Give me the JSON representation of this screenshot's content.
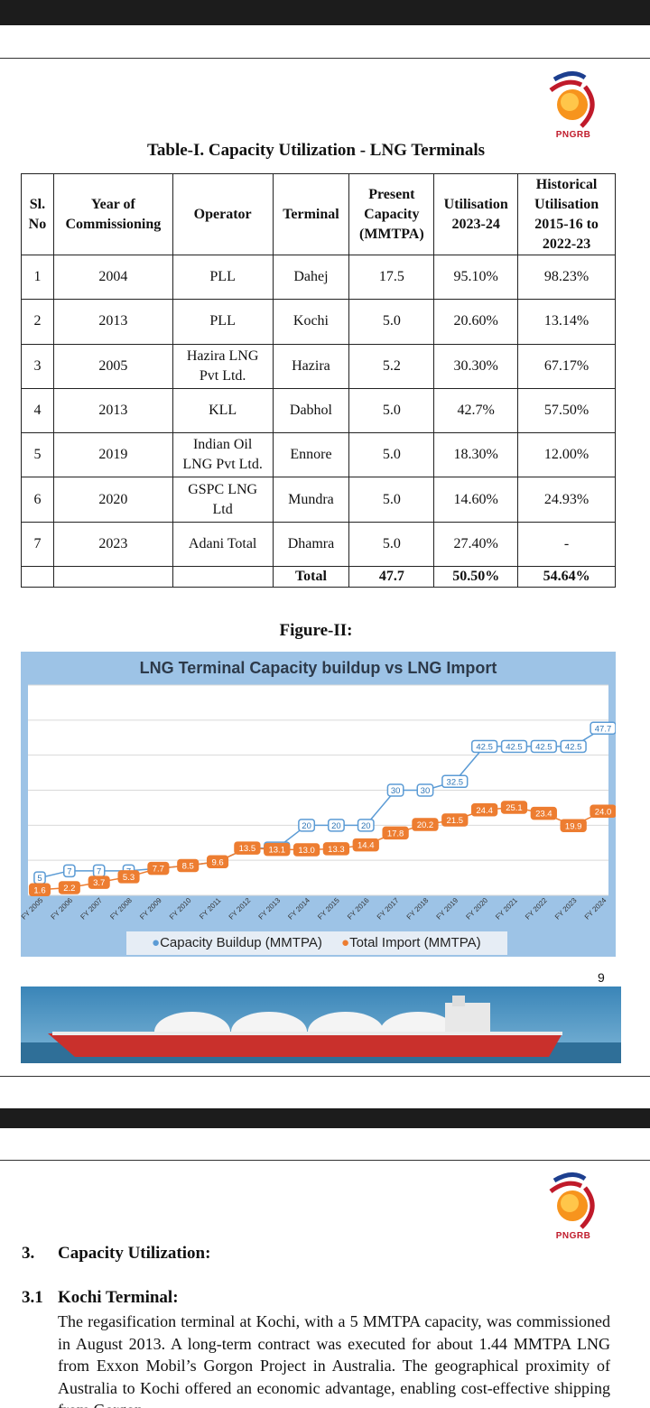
{
  "brand": {
    "logo_text": "PNGRB"
  },
  "table": {
    "title": "Table-I. Capacity Utilization - LNG Terminals",
    "headers": {
      "sl": [
        "Sl.",
        "No"
      ],
      "year": [
        "Year of",
        "Commissioning"
      ],
      "operator": "Operator",
      "terminal": "Terminal",
      "capacity": [
        "Present",
        "Capacity",
        "(MMTPA)"
      ],
      "util": [
        "Utilisation",
        "2023-24"
      ],
      "hist": [
        "Historical",
        "Utilisation",
        "2015-16 to",
        "2022-23"
      ]
    },
    "rows": [
      {
        "sl": "1",
        "year": "2004",
        "operator": [
          "PLL"
        ],
        "terminal": "Dahej",
        "capacity": "17.5",
        "util": "95.10%",
        "hist": "98.23%"
      },
      {
        "sl": "2",
        "year": "2013",
        "operator": [
          "PLL"
        ],
        "terminal": "Kochi",
        "capacity": "5.0",
        "util": "20.60%",
        "hist": "13.14%"
      },
      {
        "sl": "3",
        "year": "2005",
        "operator": [
          "Hazira LNG",
          "Pvt Ltd."
        ],
        "terminal": "Hazira",
        "capacity": "5.2",
        "util": "30.30%",
        "hist": "67.17%"
      },
      {
        "sl": "4",
        "year": "2013",
        "operator": [
          "KLL"
        ],
        "terminal": "Dabhol",
        "capacity": "5.0",
        "util": "42.7%",
        "hist": "57.50%"
      },
      {
        "sl": "5",
        "year": "2019",
        "operator": [
          "Indian Oil",
          "LNG Pvt Ltd."
        ],
        "terminal": "Ennore",
        "capacity": "5.0",
        "util": "18.30%",
        "hist": "12.00%"
      },
      {
        "sl": "6",
        "year": "2020",
        "operator": [
          "GSPC LNG",
          "Ltd"
        ],
        "terminal": "Mundra",
        "capacity": "5.0",
        "util": "14.60%",
        "hist": "24.93%"
      },
      {
        "sl": "7",
        "year": "2023",
        "operator": [
          "Adani Total"
        ],
        "terminal": "Dhamra",
        "capacity": "5.0",
        "util": "27.40%",
        "hist": "-"
      }
    ],
    "total": {
      "label": "Total",
      "capacity": "47.7",
      "util": "50.50%",
      "hist": "54.64%"
    }
  },
  "figure_title": "Figure-II:",
  "chart_data": {
    "type": "line",
    "title": "LNG Terminal Capacity buildup vs LNG Import",
    "categories": [
      "FY 2005",
      "FY 2006",
      "FY 2007",
      "FY 2008",
      "FY 2009",
      "FY 2010",
      "FY 2011",
      "FY 2012",
      "FY 2013",
      "FY 2014",
      "FY 2015",
      "FY 2016",
      "FY 2017",
      "FY 2018",
      "FY 2019",
      "FY 2020",
      "FY 2021",
      "FY 2022",
      "FY 2023",
      "FY 2024"
    ],
    "series": [
      {
        "name": "Capacity Buildup (MMTPA)",
        "color": "#5b9bd5",
        "values": [
          5,
          7,
          7,
          7,
          7.7,
          8.5,
          9.6,
          13.5,
          13.5,
          20,
          20,
          20,
          30,
          30,
          32.5,
          42.5,
          42.5,
          42.5,
          42.5,
          47.7
        ],
        "labels": [
          "5",
          "7",
          "7",
          "7",
          "",
          "",
          "",
          "",
          "13.5",
          "20",
          "20",
          "20",
          "30",
          "30",
          "32.5",
          "42.5",
          "42.5",
          "42.5",
          "42.5",
          "47.7"
        ]
      },
      {
        "name": "Total Import (MMTPA)",
        "color": "#ed7d31",
        "values": [
          1.6,
          2.2,
          3.7,
          5.3,
          7.7,
          8.5,
          9.6,
          13.5,
          13.1,
          13.0,
          13.3,
          14.4,
          17.8,
          20.2,
          21.5,
          24.4,
          25.1,
          23.4,
          19.9,
          24.0
        ],
        "labels": [
          "1.6",
          "2.2",
          "3.7",
          "5.3",
          "7.7",
          "8.5",
          "9.6",
          "13.5",
          "13.1",
          "13.0",
          "13.3",
          "14.4",
          "17.8",
          "20.2",
          "21.5",
          "24.4",
          "25.1",
          "23.4",
          "19.9",
          "24.0"
        ]
      }
    ],
    "ylim": [
      0,
      60
    ],
    "grid": true,
    "legend": "bottom"
  },
  "page_number": "9",
  "section": {
    "number": "3.",
    "title": "Capacity Utilization:",
    "sub_number": "3.1",
    "sub_title": "Kochi Terminal:",
    "paragraph": "The regasification terminal at Kochi, with a 5 MMTPA capacity, was commissioned in August 2013. A long-term contract was executed for about 1.44 MMTPA LNG from Exxon Mobil’s Gorgon Project in Australia. The geographical proximity of Australia to Kochi offered an economic advantage, enabling cost-effective shipping from Gorgon."
  }
}
